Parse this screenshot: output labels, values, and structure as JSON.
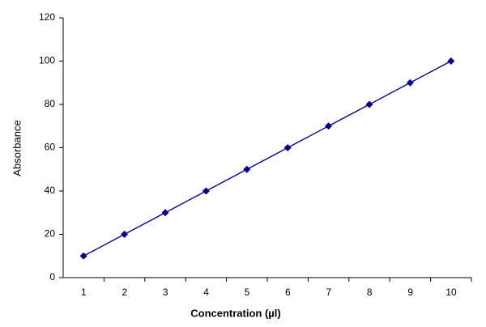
{
  "chart_data": {
    "type": "line",
    "x_label": "Concentration (µl)",
    "y_label": "Absorbance",
    "x": [
      0.5,
      1.5,
      2.5,
      3.5,
      4.5,
      5.5,
      6.5,
      7.5,
      8.5,
      9.5
    ],
    "values": [
      10,
      20,
      30,
      40,
      50,
      60,
      70,
      80,
      90,
      100
    ],
    "color": "#000080",
    "xlim": [
      0,
      10
    ],
    "xticks": [
      1,
      2,
      3,
      4,
      5,
      6,
      7,
      8,
      9,
      10
    ],
    "ylim": [
      0,
      120
    ],
    "yticks": [
      0,
      20,
      40,
      60,
      80,
      100,
      120
    ],
    "grid": false
  }
}
